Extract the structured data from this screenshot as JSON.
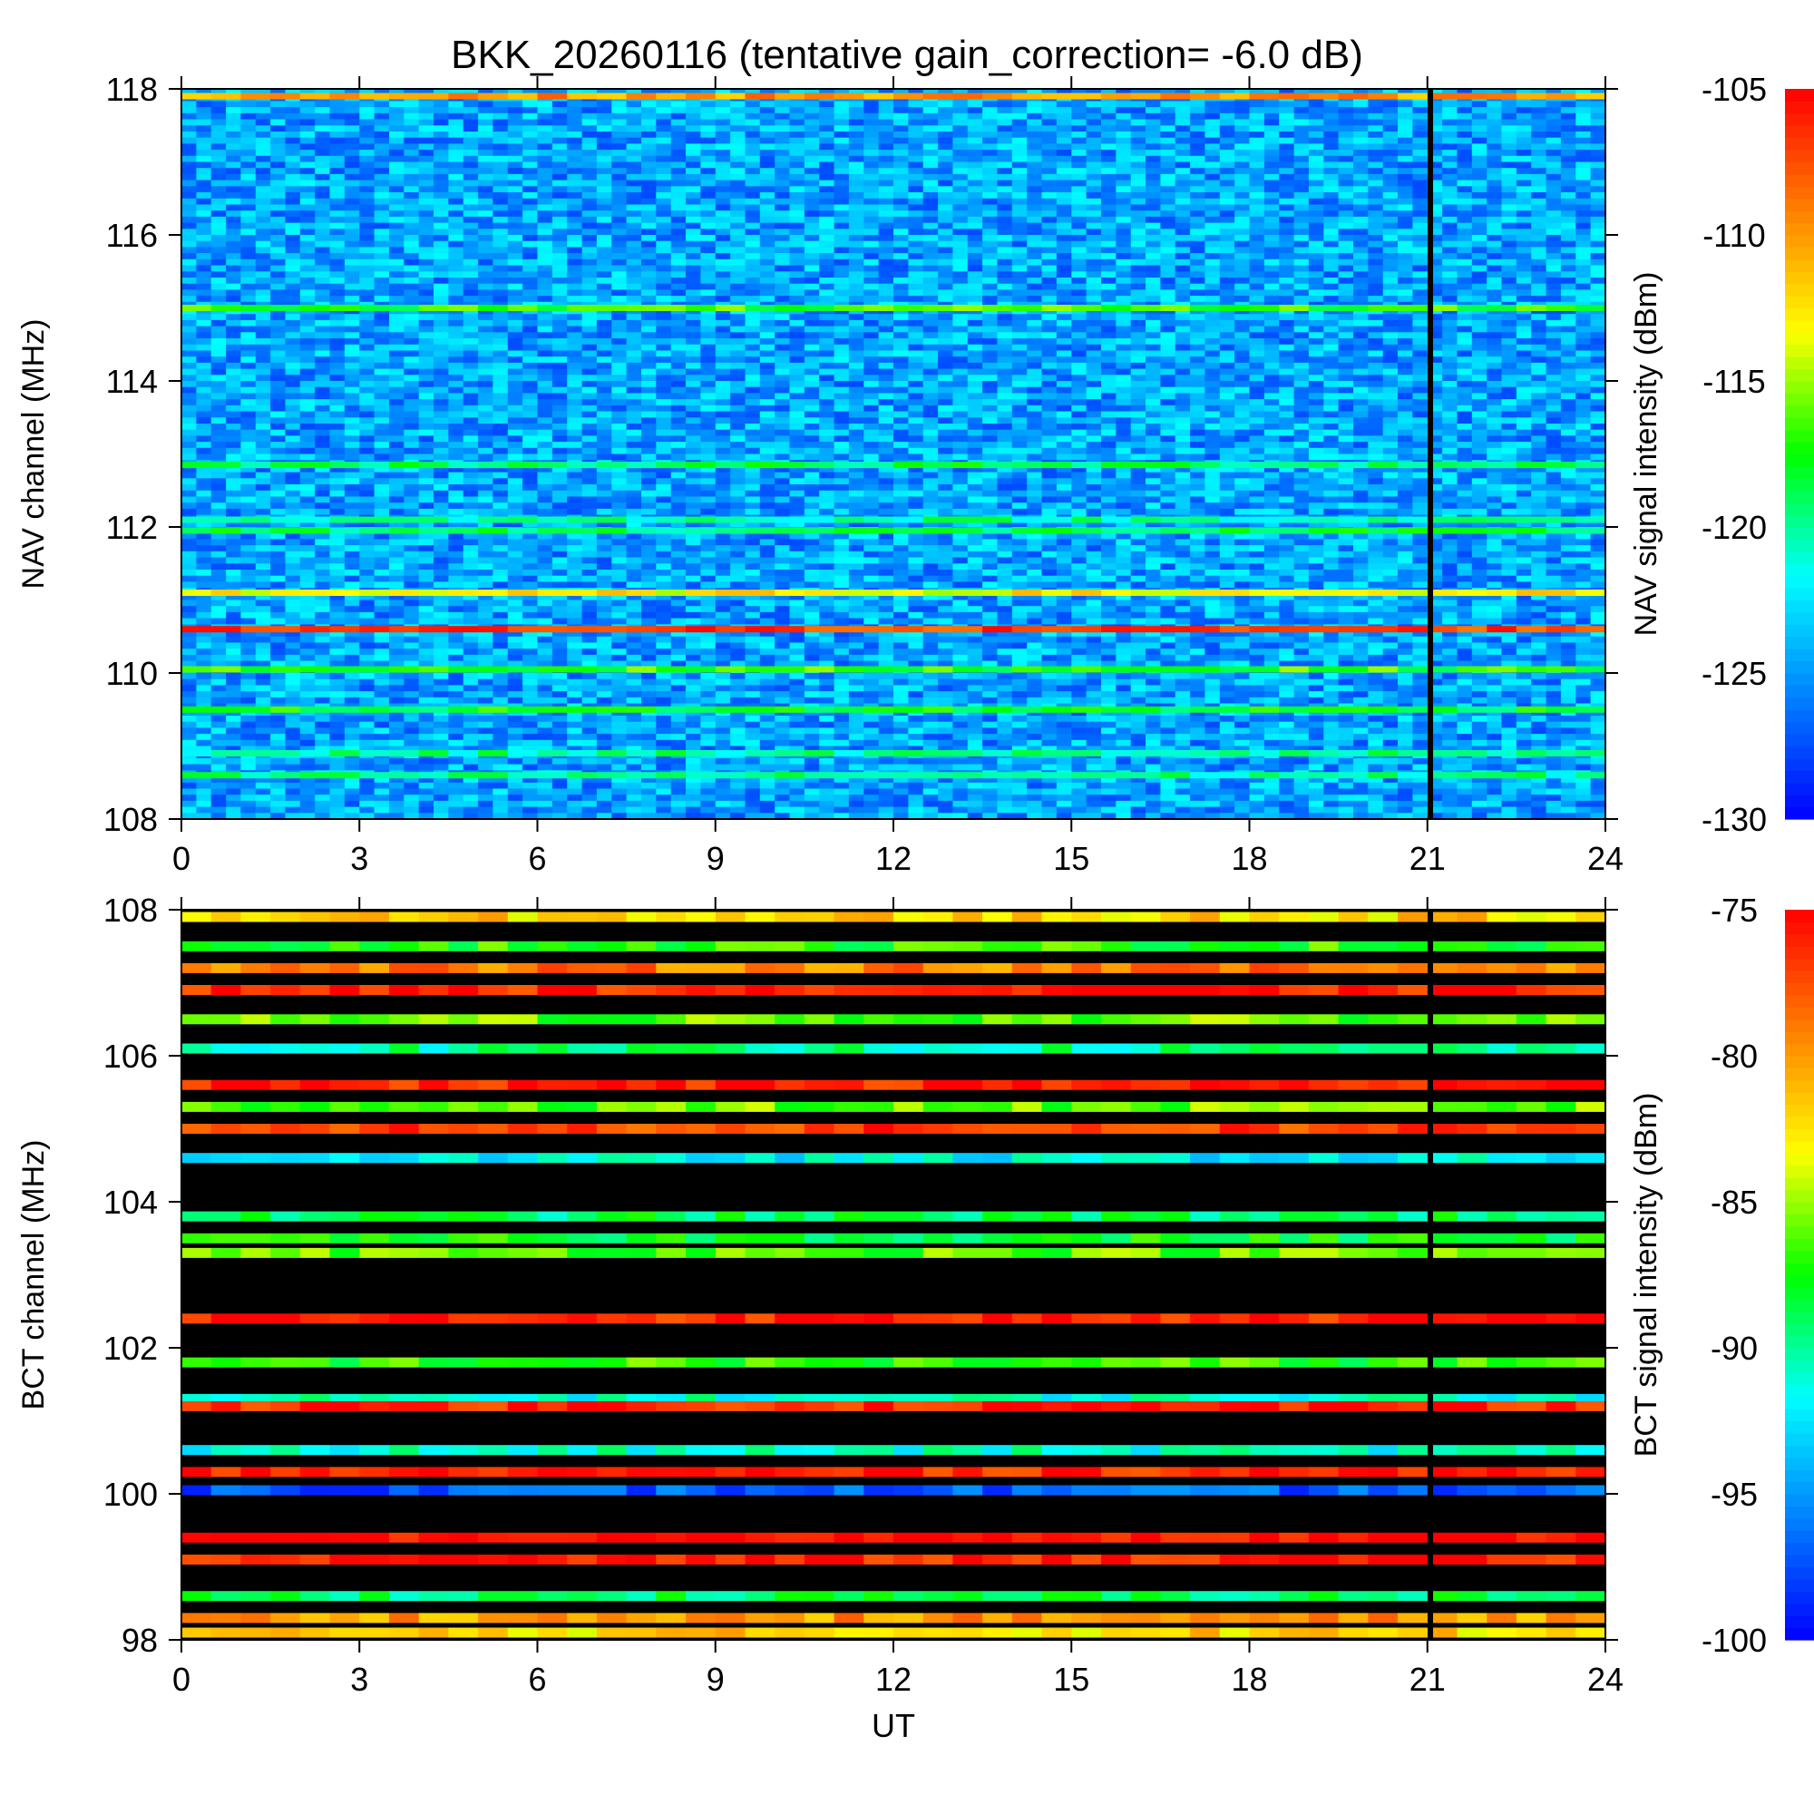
{
  "title": "BKK_20260116 (tentative gain_correction= -6.0 dB)",
  "colors": {
    "background": "#ffffff",
    "axis": "#000000",
    "colormap": [
      "#0000ff",
      "#0080ff",
      "#00ffff",
      "#00ff00",
      "#ffff00",
      "#ff8000",
      "#ff0000"
    ],
    "nodata": "#000000"
  },
  "chart_data": [
    {
      "type": "heatmap",
      "name": "NAV",
      "xlabel": "",
      "ylabel": "NAV channel (MHz)",
      "colorbar_label": "NAV signal intensity (dBm)",
      "xlim": [
        0,
        24
      ],
      "ylim": [
        108,
        118
      ],
      "xticks": [
        0,
        3,
        6,
        9,
        12,
        15,
        18,
        21,
        24
      ],
      "xtick_labels": [
        "0",
        "3",
        "6",
        "9",
        "12",
        "15",
        "18",
        "21",
        "24"
      ],
      "yticks": [
        108,
        110,
        112,
        114,
        116,
        118
      ],
      "ytick_labels": [
        "108",
        "110",
        "112",
        "114",
        "116",
        "118"
      ],
      "clim": [
        -130,
        -105
      ],
      "cticks": [
        -130,
        -125,
        -120,
        -115,
        -110,
        -105
      ],
      "ctick_labels": [
        "-130",
        "-125",
        "-120",
        "-115",
        "-110",
        "-105"
      ],
      "base_dbm": -124,
      "gap_ut": 21.05,
      "bands": [
        {
          "f": 117.9,
          "db": -110
        },
        {
          "f": 115.0,
          "db": -117
        },
        {
          "f": 112.85,
          "db": -119
        },
        {
          "f": 112.1,
          "db": -120
        },
        {
          "f": 111.95,
          "db": -119
        },
        {
          "f": 111.1,
          "db": -113
        },
        {
          "f": 110.6,
          "db": -107
        },
        {
          "f": 110.05,
          "db": -117
        },
        {
          "f": 109.5,
          "db": -118
        },
        {
          "f": 108.9,
          "db": -120
        },
        {
          "f": 108.6,
          "db": -120
        }
      ]
    },
    {
      "type": "heatmap",
      "name": "BCT",
      "xlabel": "UT",
      "ylabel": "BCT channel (MHz)",
      "colorbar_label": "BCT signal intensity (dBm)",
      "xlim": [
        0,
        24
      ],
      "ylim": [
        98,
        108
      ],
      "xticks": [
        0,
        3,
        6,
        9,
        12,
        15,
        18,
        21,
        24
      ],
      "xtick_labels": [
        "0",
        "3",
        "6",
        "9",
        "12",
        "15",
        "18",
        "21",
        "24"
      ],
      "yticks": [
        98,
        100,
        102,
        104,
        106,
        108
      ],
      "ytick_labels": [
        "98",
        "100",
        "102",
        "104",
        "106",
        "108"
      ],
      "clim": [
        -100,
        -75
      ],
      "cticks": [
        -100,
        -95,
        -90,
        -85,
        -80,
        -75
      ],
      "ctick_labels": [
        "-100",
        "-95",
        "-90",
        "-85",
        "-80",
        "-75"
      ],
      "gap_ut": 21.05,
      "bands": [
        {
          "f": 107.9,
          "db": -82
        },
        {
          "f": 107.5,
          "db": -87
        },
        {
          "f": 107.2,
          "db": -79
        },
        {
          "f": 106.9,
          "db": -76
        },
        {
          "f": 106.5,
          "db": -86
        },
        {
          "f": 106.1,
          "db": -90
        },
        {
          "f": 105.6,
          "db": -76
        },
        {
          "f": 105.3,
          "db": -86
        },
        {
          "f": 105.0,
          "db": -77
        },
        {
          "f": 104.6,
          "db": -92
        },
        {
          "f": 103.8,
          "db": -89
        },
        {
          "f": 103.5,
          "db": -88
        },
        {
          "f": 103.3,
          "db": -86
        },
        {
          "f": 102.4,
          "db": -76
        },
        {
          "f": 101.8,
          "db": -87
        },
        {
          "f": 101.3,
          "db": -91
        },
        {
          "f": 101.2,
          "db": -76
        },
        {
          "f": 100.6,
          "db": -91
        },
        {
          "f": 100.3,
          "db": -76
        },
        {
          "f": 100.05,
          "db": -97
        },
        {
          "f": 99.4,
          "db": -75
        },
        {
          "f": 99.1,
          "db": -76
        },
        {
          "f": 98.6,
          "db": -89
        },
        {
          "f": 98.3,
          "db": -80
        },
        {
          "f": 98.1,
          "db": -82
        }
      ]
    }
  ]
}
